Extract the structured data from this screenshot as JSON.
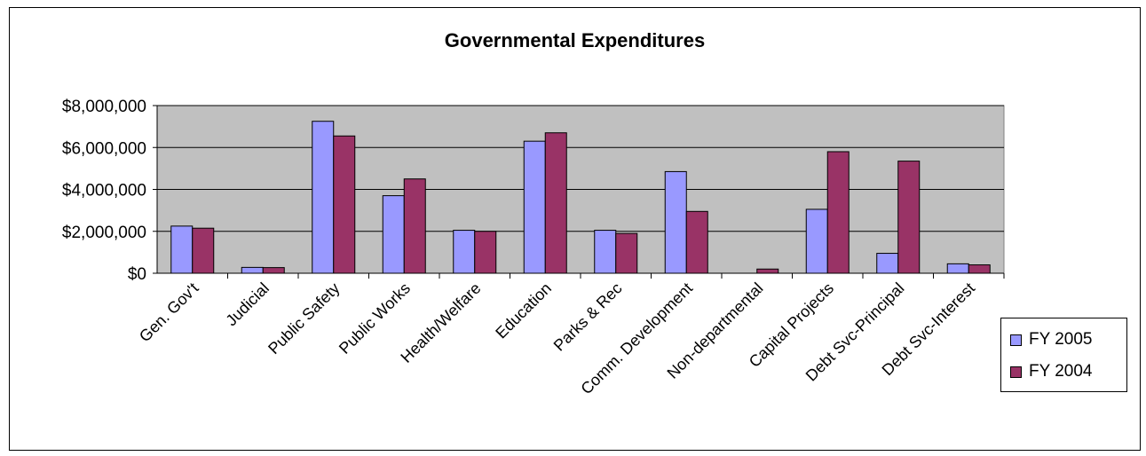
{
  "chart_data": {
    "type": "bar",
    "title": "Governmental Expenditures",
    "categories": [
      "Gen. Gov't",
      "Judicial",
      "Public Safety",
      "Public Works",
      "Health/Welfare",
      "Education",
      "Parks & Rec",
      "Comm. Development",
      "Non-departmental",
      "Capital Projects",
      "Debt Svc-Principal",
      "Debt Svc-Interest"
    ],
    "series": [
      {
        "name": "FY 2005",
        "color": "#9999ff",
        "values": [
          2250000,
          280000,
          7250000,
          3700000,
          2050000,
          6300000,
          2050000,
          4850000,
          0,
          3050000,
          950000,
          450000
        ]
      },
      {
        "name": "FY 2004",
        "color": "#993366",
        "values": [
          2150000,
          270000,
          6550000,
          4500000,
          2000000,
          6700000,
          1900000,
          2950000,
          200000,
          5800000,
          5350000,
          400000
        ]
      }
    ],
    "ylim": [
      0,
      8000000
    ],
    "yticks": [
      0,
      2000000,
      4000000,
      6000000,
      8000000
    ],
    "ytick_labels": [
      "$0",
      "$2,000,000",
      "$4,000,000",
      "$6,000,000",
      "$8,000,000"
    ],
    "grid": true,
    "plot_background": "#c0c0c0",
    "legend_position": "right"
  }
}
